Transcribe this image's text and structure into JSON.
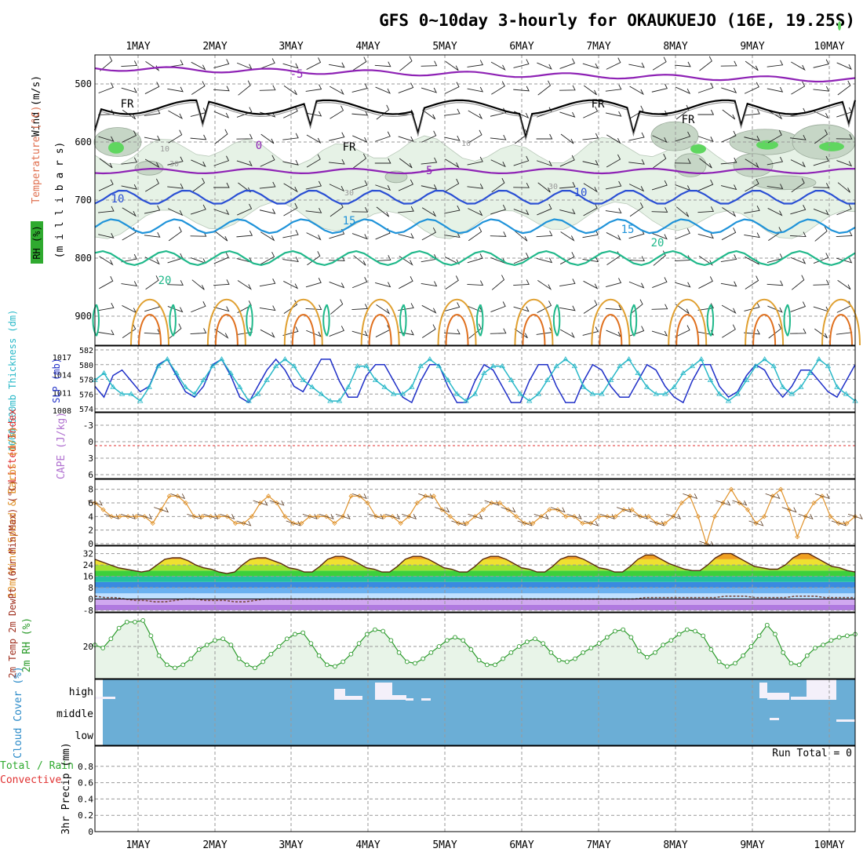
{
  "title": "GFS 0~10day 3-hourly for OKAUKUEJO (16E, 19.25S)",
  "days": [
    "1MAY",
    "2MAY",
    "3MAY",
    "4MAY",
    "5MAY",
    "6MAY",
    "7MAY",
    "8MAY",
    "9MAY",
    "10MAY"
  ],
  "colors": {
    "frame": "#000000",
    "grid": "#999999",
    "t_m5": "#8e22b5",
    "t_0": "#8e22b5",
    "t_10": "#2a4fd4",
    "t_15": "#1f93d9",
    "t_20": "#1fb88a",
    "t_25": "#e0a030",
    "t_30": "#e0701e",
    "slp": "#2030c8",
    "thick": "#28b8c8",
    "wind10": "#e0922a",
    "rh": "#2a9a2a",
    "rh_fill": "#e8f4e8",
    "cloud": "#6baed6",
    "lifted": "#e03030"
  },
  "chart_data": [
    {
      "type": "contour",
      "panel": "upper-air",
      "ylabel_parts": [
        "Wind (m/s)",
        "Temperature (°C)",
        "RH (%)",
        "(m i l l i b a r s)"
      ],
      "y_ticks": [
        500,
        600,
        700,
        800,
        900
      ],
      "ylim": [
        450,
        950
      ],
      "contour_labels": [
        "FR",
        "FR",
        "FR",
        "FR",
        "-5",
        "0",
        "-5",
        "10",
        "10",
        "15",
        "15",
        "20",
        "20",
        "10",
        "30",
        "10",
        "30",
        "30"
      ],
      "isotherms": [
        {
          "value": "-5",
          "mb": 485
        },
        {
          "value": "-5",
          "mb": 650
        },
        {
          "value": "10",
          "mb": 695
        },
        {
          "value": "15",
          "mb": 745
        },
        {
          "value": "20",
          "mb": 800
        }
      ]
    },
    {
      "type": "line",
      "panel": "slp-thickness",
      "ylabel_left": "1000~500mb Thickness (dm)",
      "ylabel_right": "SLP (mb)",
      "y_ticks_left": [
        574,
        576,
        578,
        580,
        582
      ],
      "y_ticks_right": [
        1008,
        1011,
        1014,
        1017
      ],
      "series": [
        {
          "name": "SLP",
          "values": [
            1012,
            1010,
            1014,
            1015,
            1013,
            1011,
            1012,
            1016,
            1017,
            1014,
            1011,
            1010,
            1012,
            1016,
            1017,
            1014,
            1010,
            1009,
            1012,
            1015,
            1017,
            1015,
            1012,
            1011,
            1014,
            1017,
            1017,
            1013,
            1010,
            1010,
            1014,
            1016,
            1016,
            1013,
            1010,
            1009,
            1013,
            1016,
            1016,
            1012,
            1009,
            1009,
            1013,
            1016,
            1015,
            1012,
            1009,
            1009,
            1013,
            1016,
            1016,
            1012,
            1009,
            1009,
            1013,
            1016,
            1015,
            1012,
            1010,
            1010,
            1013,
            1016,
            1015,
            1012,
            1010,
            1009,
            1013,
            1016,
            1016,
            1012,
            1010,
            1011,
            1014,
            1016,
            1015,
            1012,
            1010,
            1012,
            1015,
            1015,
            1013,
            1011,
            1010,
            1013,
            1016
          ]
        },
        {
          "name": "Thickness",
          "values": [
            578,
            579,
            577,
            576,
            576,
            575,
            577,
            580,
            581,
            579,
            577,
            576,
            578,
            580,
            581,
            579,
            577,
            575,
            576,
            578,
            580,
            581,
            580,
            578,
            577,
            576,
            575,
            575,
            577,
            580,
            580,
            578,
            577,
            576,
            576,
            577,
            580,
            581,
            580,
            578,
            576,
            575,
            576,
            579,
            580,
            580,
            578,
            576,
            575,
            576,
            578,
            580,
            581,
            580,
            577,
            576,
            576,
            578,
            580,
            581,
            579,
            577,
            576,
            576,
            577,
            579,
            580,
            581,
            578,
            576,
            575,
            576,
            578,
            580,
            581,
            580,
            577,
            576,
            577,
            579,
            581,
            580,
            577,
            576,
            575
          ]
        }
      ]
    },
    {
      "type": "line",
      "panel": "lifted-cape",
      "ylabel_left": "Lifted Index",
      "ylabel_right": "CAPE (J/kg)",
      "y_ticks": [
        -3,
        0,
        3,
        6
      ],
      "ylim": [
        -3,
        6
      ],
      "series": [
        {
          "name": "Lifted Index",
          "values": [
            0
          ]
        }
      ]
    },
    {
      "type": "line",
      "panel": "wind10",
      "ylabel": "10m Wind Speed & Barbs (m/s)",
      "y_ticks": [
        0,
        2,
        4,
        6,
        8
      ],
      "ylim": [
        0,
        9
      ],
      "series": [
        {
          "name": "10m Wind Speed",
          "values": [
            6,
            5,
            4,
            4,
            4,
            4,
            4,
            3,
            5,
            7,
            7,
            6,
            4,
            4,
            4,
            4,
            4,
            3,
            3,
            4,
            6,
            7,
            6,
            4,
            3,
            3,
            4,
            4,
            4,
            3,
            4,
            7,
            7,
            6,
            4,
            4,
            4,
            3,
            4,
            6,
            7,
            7,
            5,
            4,
            3,
            3,
            4,
            5,
            6,
            6,
            5,
            4,
            3,
            3,
            4,
            5,
            5,
            4,
            4,
            3,
            3,
            4,
            4,
            4,
            5,
            5,
            4,
            4,
            3,
            3,
            4,
            6,
            7,
            4,
            0,
            4,
            6,
            8,
            6,
            5,
            3,
            4,
            7,
            8,
            5,
            1,
            4,
            6,
            7,
            4,
            3,
            3,
            4
          ]
        }
      ]
    },
    {
      "type": "area",
      "panel": "t2m",
      "ylabel": "2m Temp 2m DewPt (6hr Min/Max) (°C)",
      "y_ticks": [
        -8,
        0,
        8,
        16,
        24,
        32
      ],
      "ylim": [
        -8,
        34
      ],
      "series": [
        {
          "name": "2m Temp",
          "values": [
            28,
            26,
            24,
            22,
            21,
            20,
            19,
            20,
            24,
            28,
            29,
            29,
            27,
            24,
            22,
            21,
            19,
            18,
            19,
            24,
            28,
            29,
            29,
            27,
            25,
            22,
            21,
            19,
            19,
            23,
            28,
            30,
            30,
            28,
            25,
            22,
            21,
            19,
            19,
            23,
            28,
            30,
            30,
            28,
            25,
            22,
            21,
            19,
            19,
            23,
            28,
            30,
            30,
            28,
            25,
            22,
            21,
            19,
            19,
            23,
            28,
            30,
            30,
            28,
            25,
            22,
            21,
            19,
            19,
            23,
            28,
            31,
            31,
            28,
            25,
            23,
            21,
            20,
            20,
            24,
            29,
            32,
            32,
            29,
            26,
            23,
            22,
            21,
            21,
            24,
            29,
            32,
            32,
            29,
            26,
            23,
            22,
            20,
            19
          ]
        },
        {
          "name": "2m DewPt",
          "values": [
            2,
            1,
            1,
            0,
            -1,
            -1,
            -2,
            -2,
            -1,
            0,
            0,
            -1,
            -1,
            -1,
            -2,
            -2,
            -1,
            0,
            0,
            0,
            0,
            0,
            0,
            0,
            0,
            0,
            0,
            0,
            0,
            0,
            0,
            0,
            0,
            0,
            0,
            0,
            0,
            0,
            0,
            0,
            0,
            0,
            0,
            0,
            0,
            0,
            0,
            0,
            0,
            0,
            0,
            0,
            0,
            0,
            0,
            1,
            1,
            1,
            1,
            1,
            1,
            1,
            1,
            2,
            2,
            2,
            1,
            1,
            1,
            1,
            2,
            2,
            2,
            1,
            1,
            1,
            1
          ]
        }
      ]
    },
    {
      "type": "area",
      "panel": "rh2m",
      "ylabel": "2m RH (%)",
      "y_ticks": [
        20
      ],
      "ylim": [
        0,
        40
      ],
      "series": [
        {
          "name": "2m RH",
          "values": [
            21,
            19,
            25,
            32,
            36,
            36,
            37,
            27,
            14,
            8,
            6,
            8,
            12,
            18,
            21,
            24,
            25,
            21,
            12,
            8,
            6,
            10,
            15,
            20,
            25,
            28,
            29,
            22,
            14,
            8,
            7,
            10,
            15,
            22,
            28,
            31,
            30,
            24,
            16,
            10,
            9,
            12,
            16,
            20,
            24,
            26,
            24,
            18,
            11,
            8,
            8,
            12,
            16,
            20,
            23,
            25,
            22,
            16,
            11,
            10,
            12,
            16,
            19,
            22,
            26,
            30,
            31,
            26,
            17,
            13,
            16,
            21,
            24,
            28,
            31,
            30,
            27,
            18,
            10,
            7,
            9,
            14,
            20,
            27,
            34,
            28,
            16,
            9,
            8,
            14,
            19,
            21,
            24,
            26,
            27,
            28
          ]
        }
      ]
    },
    {
      "type": "bar",
      "panel": "cloud",
      "ylabel": "Cloud Cover (%)",
      "y_categories": [
        "high",
        "middle",
        "low"
      ]
    },
    {
      "type": "bar",
      "panel": "precip",
      "ylabel_left": "Total / Rain",
      "ylabel_sub": "Convective",
      "ylabel": "3hr Precip (mm)",
      "y_ticks": [
        0,
        0.2,
        0.4,
        0.6,
        0.8
      ],
      "ylim": [
        0,
        1
      ],
      "annotation": "Run Total = 0",
      "values": [
        0
      ]
    }
  ]
}
